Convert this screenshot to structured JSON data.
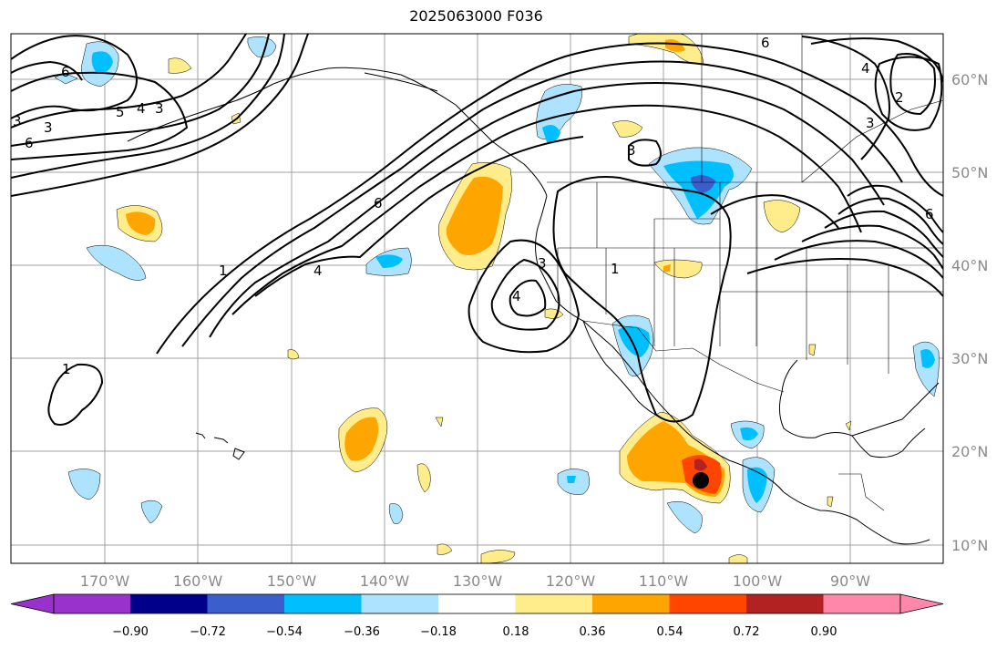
{
  "title": "2025063000 F036",
  "map": {
    "lon_labels": [
      "170°W",
      "160°W",
      "150°W",
      "140°W",
      "130°W",
      "120°W",
      "110°W",
      "100°W",
      "90°W"
    ],
    "lat_labels": [
      "60°N",
      "50°N",
      "40°N",
      "30°N",
      "20°N",
      "10°N"
    ],
    "contour_labels": [
      "6",
      "3",
      "4",
      "5",
      "3",
      "6",
      "3",
      "1",
      "4",
      "6",
      "3",
      "4",
      "1",
      "3",
      "6",
      "1",
      "2",
      "3",
      "4",
      "6"
    ],
    "marker": "storm-center-dot"
  },
  "colorbar": {
    "ticks": [
      "−0.90",
      "−0.72",
      "−0.54",
      "−0.36",
      "−0.18",
      "0.18",
      "0.36",
      "0.54",
      "0.72",
      "0.90"
    ],
    "colors": [
      "#9932cc",
      "#00008b",
      "#3a5fcd",
      "#00bfff",
      "#aee3ff",
      "#ffffff",
      "#ffec8b",
      "#ffa500",
      "#ff4500",
      "#b22222",
      "#ff88aa"
    ]
  }
}
